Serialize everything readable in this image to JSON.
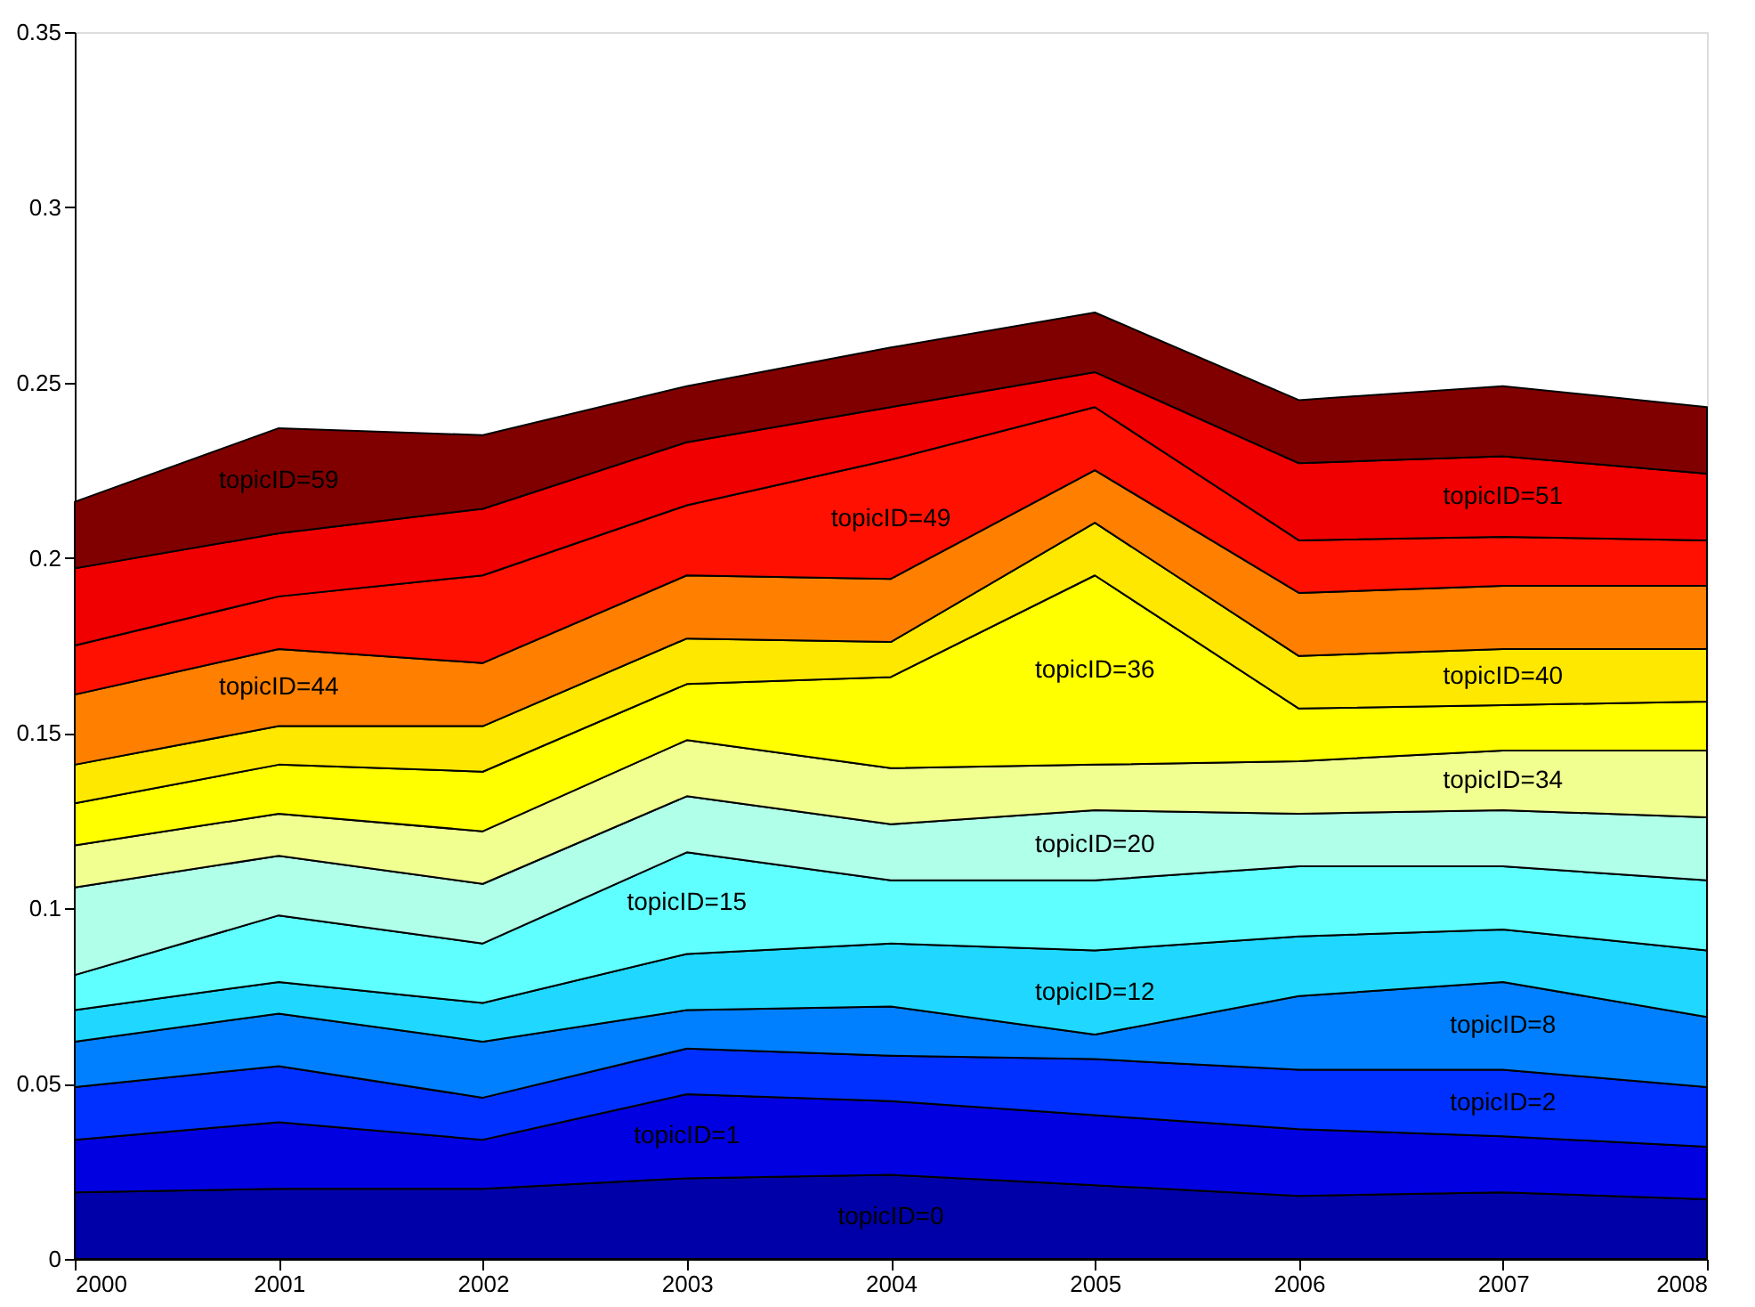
{
  "chart_data": {
    "type": "area",
    "stacked": true,
    "x": [
      2000,
      2001,
      2002,
      2003,
      2004,
      2005,
      2006,
      2007,
      2008
    ],
    "xlim": [
      2000,
      2008
    ],
    "xticks": [
      2000,
      2001,
      2002,
      2003,
      2004,
      2005,
      2006,
      2007,
      2008
    ],
    "ylim": [
      0,
      0.35
    ],
    "yticks": [
      0,
      0.05,
      0.1,
      0.15,
      0.2,
      0.25,
      0.3,
      0.35
    ],
    "grid": false,
    "series": [
      {
        "name": "topicID=0",
        "color": "#0000a8",
        "values": [
          0.019,
          0.02,
          0.02,
          0.023,
          0.024,
          0.021,
          0.018,
          0.019,
          0.017
        ]
      },
      {
        "name": "topicID=1",
        "color": "#0000e0",
        "values": [
          0.015,
          0.019,
          0.014,
          0.024,
          0.021,
          0.02,
          0.019,
          0.016,
          0.015
        ]
      },
      {
        "name": "topicID=2",
        "color": "#0030ff",
        "values": [
          0.015,
          0.016,
          0.012,
          0.013,
          0.013,
          0.016,
          0.017,
          0.019,
          0.017
        ]
      },
      {
        "name": "topicID=8",
        "color": "#0080ff",
        "values": [
          0.013,
          0.015,
          0.016,
          0.011,
          0.014,
          0.007,
          0.021,
          0.025,
          0.02
        ]
      },
      {
        "name": "topicID=12",
        "color": "#20d8ff",
        "values": [
          0.009,
          0.009,
          0.011,
          0.016,
          0.018,
          0.024,
          0.017,
          0.015,
          0.019
        ]
      },
      {
        "name": "topicID=15",
        "color": "#60ffff",
        "values": [
          0.01,
          0.019,
          0.017,
          0.029,
          0.018,
          0.02,
          0.02,
          0.018,
          0.02
        ]
      },
      {
        "name": "topicID=20",
        "color": "#b0ffe8",
        "values": [
          0.025,
          0.017,
          0.017,
          0.016,
          0.016,
          0.02,
          0.015,
          0.016,
          0.018
        ]
      },
      {
        "name": "topicID=34",
        "color": "#f0ff90",
        "values": [
          0.012,
          0.012,
          0.015,
          0.016,
          0.016,
          0.013,
          0.015,
          0.017,
          0.019
        ]
      },
      {
        "name": "topicID=36",
        "color": "#ffff00",
        "values": [
          0.012,
          0.014,
          0.017,
          0.016,
          0.026,
          0.054,
          0.015,
          0.013,
          0.014
        ]
      },
      {
        "name": "topicID=40",
        "color": "#ffe800",
        "values": [
          0.011,
          0.011,
          0.013,
          0.013,
          0.01,
          0.015,
          0.015,
          0.016,
          0.015
        ]
      },
      {
        "name": "topicID=44",
        "color": "#ff8000",
        "values": [
          0.02,
          0.022,
          0.018,
          0.018,
          0.018,
          0.015,
          0.018,
          0.018,
          0.018
        ]
      },
      {
        "name": "topicID=49",
        "color": "#ff1000",
        "values": [
          0.014,
          0.015,
          0.025,
          0.02,
          0.034,
          0.018,
          0.015,
          0.014,
          0.013
        ]
      },
      {
        "name": "topicID=51",
        "color": "#f00000",
        "values": [
          0.022,
          0.018,
          0.019,
          0.018,
          0.015,
          0.01,
          0.022,
          0.023,
          0.019
        ]
      },
      {
        "name": "topicID=59",
        "color": "#800000",
        "values": [
          0.019,
          0.03,
          0.021,
          0.016,
          0.017,
          0.017,
          0.018,
          0.02,
          0.019
        ]
      }
    ]
  }
}
